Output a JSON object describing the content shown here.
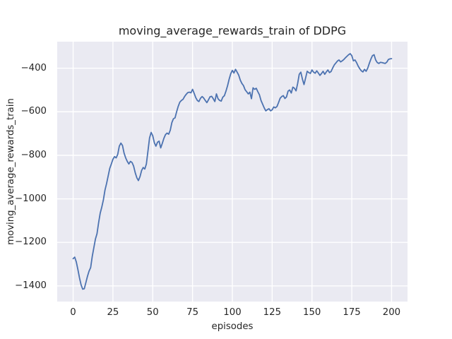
{
  "figure": {
    "background": "#ffffff"
  },
  "chart_data": {
    "type": "line",
    "title": "moving_average_rewards_train of DDPG",
    "xlabel": "episodes",
    "ylabel": "moving_average_rewards_train",
    "x_ticks": [
      0,
      25,
      50,
      75,
      100,
      125,
      150,
      175,
      200
    ],
    "y_ticks": [
      -400,
      -600,
      -800,
      -1000,
      -1200,
      -1400
    ],
    "xlim": [
      -10,
      210
    ],
    "ylim": [
      -1472,
      -278
    ],
    "grid": true,
    "legend": null,
    "style": {
      "axes_bg": "#eaeaf2",
      "grid_color": "#ffffff",
      "line_color": "#4c72b0",
      "text_color": "#262626"
    },
    "series": [
      {
        "name": "DDPG moving average rewards (train)",
        "x_start": 0,
        "x_step": 1,
        "values": [
          -1275,
          -1268,
          -1290,
          -1325,
          -1363,
          -1395,
          -1415,
          -1413,
          -1385,
          -1356,
          -1332,
          -1316,
          -1265,
          -1225,
          -1185,
          -1160,
          -1110,
          -1066,
          -1038,
          -1005,
          -960,
          -930,
          -895,
          -860,
          -840,
          -818,
          -806,
          -812,
          -796,
          -758,
          -744,
          -755,
          -790,
          -812,
          -828,
          -840,
          -828,
          -833,
          -850,
          -880,
          -903,
          -916,
          -898,
          -870,
          -856,
          -863,
          -840,
          -780,
          -720,
          -695,
          -710,
          -742,
          -758,
          -740,
          -735,
          -766,
          -745,
          -722,
          -705,
          -698,
          -703,
          -685,
          -650,
          -632,
          -628,
          -600,
          -575,
          -556,
          -548,
          -543,
          -530,
          -520,
          -512,
          -510,
          -513,
          -497,
          -515,
          -535,
          -548,
          -553,
          -538,
          -530,
          -537,
          -548,
          -558,
          -545,
          -531,
          -529,
          -540,
          -553,
          -518,
          -540,
          -548,
          -551,
          -533,
          -526,
          -505,
          -480,
          -450,
          -425,
          -410,
          -422,
          -405,
          -418,
          -432,
          -455,
          -470,
          -480,
          -499,
          -508,
          -518,
          -510,
          -540,
          -490,
          -497,
          -492,
          -508,
          -522,
          -548,
          -565,
          -582,
          -596,
          -590,
          -586,
          -596,
          -591,
          -578,
          -582,
          -576,
          -558,
          -538,
          -530,
          -526,
          -539,
          -532,
          -505,
          -500,
          -514,
          -487,
          -492,
          -504,
          -470,
          -428,
          -418,
          -450,
          -475,
          -445,
          -414,
          -420,
          -424,
          -408,
          -418,
          -423,
          -412,
          -422,
          -433,
          -424,
          -414,
          -428,
          -417,
          -408,
          -420,
          -415,
          -399,
          -385,
          -376,
          -367,
          -362,
          -371,
          -366,
          -360,
          -352,
          -345,
          -338,
          -333,
          -342,
          -366,
          -362,
          -374,
          -390,
          -402,
          -412,
          -417,
          -405,
          -414,
          -400,
          -378,
          -358,
          -342,
          -338,
          -362,
          -374,
          -378,
          -373,
          -374,
          -376,
          -378,
          -372,
          -360,
          -357,
          -356
        ]
      }
    ]
  }
}
